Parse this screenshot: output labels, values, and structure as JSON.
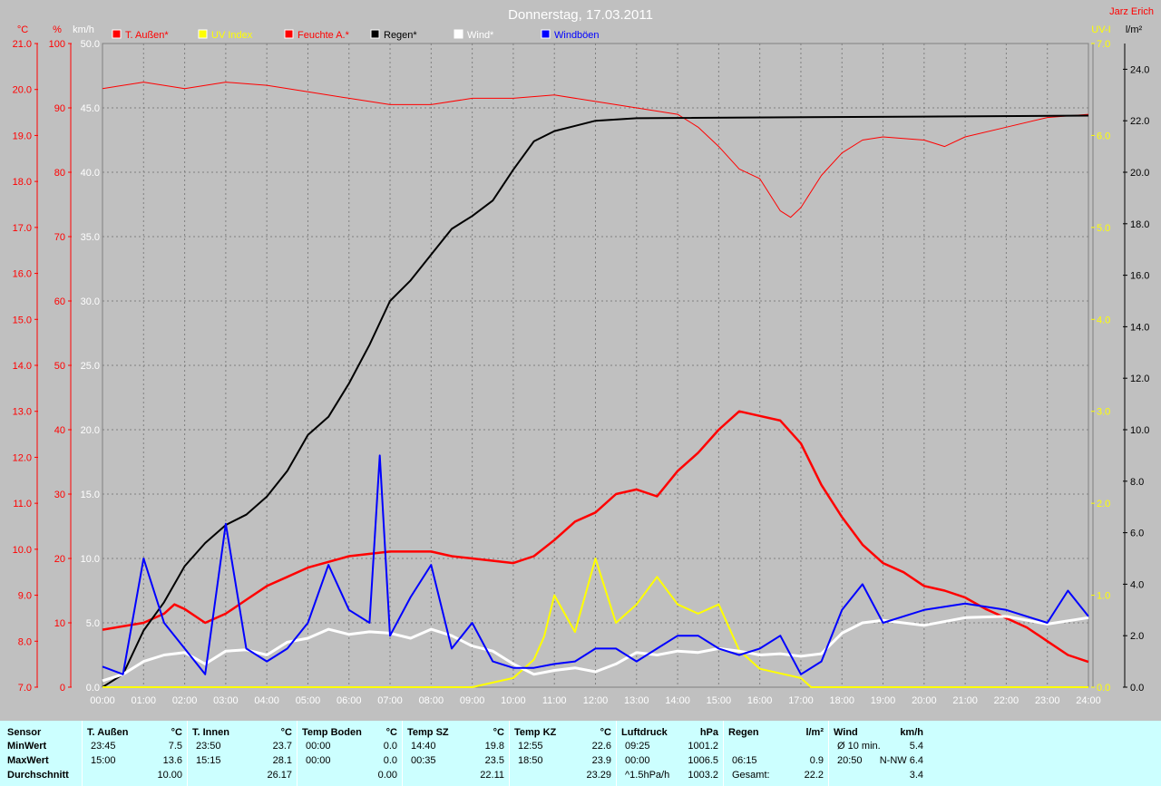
{
  "title": "Donnerstag, 17.03.2011",
  "author": "Jarz Erich",
  "axis_labels": {
    "temp_unit": "°C",
    "pct_unit": "%",
    "kmh_unit": "km/h",
    "uv_unit": "UV-I",
    "rain_unit": "l/m²"
  },
  "ticks": {
    "temp": [
      "7.0",
      "8.0",
      "9.0",
      "10.0",
      "11.0",
      "12.0",
      "13.0",
      "14.0",
      "15.0",
      "16.0",
      "17.0",
      "18.0",
      "19.0",
      "20.0",
      "21.0"
    ],
    "pct": [
      "0",
      "10",
      "20",
      "30",
      "40",
      "50",
      "60",
      "70",
      "80",
      "90",
      "100"
    ],
    "kmh": [
      "0.0",
      "5.0",
      "10.0",
      "15.0",
      "20.0",
      "25.0",
      "30.0",
      "35.0",
      "40.0",
      "45.0",
      "50.0"
    ],
    "uv": [
      "0.0",
      "1.0",
      "2.0",
      "3.0",
      "4.0",
      "5.0",
      "6.0",
      "7.0"
    ],
    "rain": [
      "0.0",
      "2.0",
      "4.0",
      "6.0",
      "8.0",
      "10.0",
      "12.0",
      "14.0",
      "16.0",
      "18.0",
      "20.0",
      "22.0",
      "24.0"
    ],
    "time": [
      "00:00",
      "01:00",
      "02:00",
      "03:00",
      "04:00",
      "05:00",
      "06:00",
      "07:00",
      "08:00",
      "09:00",
      "10:00",
      "11:00",
      "12:00",
      "13:00",
      "14:00",
      "15:00",
      "16:00",
      "17:00",
      "18:00",
      "19:00",
      "20:00",
      "21:00",
      "22:00",
      "23:00",
      "24:00"
    ]
  },
  "colors": {
    "temp": "#ff0000",
    "uv": "#ffff00",
    "humidity": "#ff0000",
    "rain": "#000000",
    "wind": "#ffffff",
    "gust": "#0000ff",
    "plot_bg": "#c0c0c0",
    "table_bg": "#ccffff"
  },
  "chart_data": {
    "type": "line",
    "title": "Donnerstag, 17.03.2011",
    "x_unit": "hour",
    "xlim": [
      0,
      24
    ],
    "legend_position": "top",
    "legend": [
      {
        "label": "T. Außen*",
        "color": "#ff0000"
      },
      {
        "label": "UV Index",
        "color": "#ffff00"
      },
      {
        "label": "Feuchte A.*",
        "color": "#ff0000"
      },
      {
        "label": "Regen*",
        "color": "#000000"
      },
      {
        "label": "Wind*",
        "color": "#ffffff"
      },
      {
        "label": "Windböen",
        "color": "#0000ff"
      }
    ],
    "series": [
      {
        "name": "T. Außen*",
        "axis": "temp",
        "ylim": [
          7,
          21
        ],
        "points": [
          [
            0,
            8.25
          ],
          [
            1,
            8.4
          ],
          [
            1.5,
            8.6
          ],
          [
            1.75,
            8.8
          ],
          [
            2,
            8.7
          ],
          [
            2.5,
            8.4
          ],
          [
            3,
            8.6
          ],
          [
            3.5,
            8.9
          ],
          [
            4,
            9.2
          ],
          [
            4.5,
            9.4
          ],
          [
            5,
            9.6
          ],
          [
            6,
            9.85
          ],
          [
            7,
            9.95
          ],
          [
            8,
            9.95
          ],
          [
            8.5,
            9.85
          ],
          [
            9,
            9.8
          ],
          [
            10,
            9.7
          ],
          [
            10.5,
            9.85
          ],
          [
            11,
            10.2
          ],
          [
            11.5,
            10.6
          ],
          [
            12,
            10.8
          ],
          [
            12.5,
            11.2
          ],
          [
            13,
            11.3
          ],
          [
            13.5,
            11.15
          ],
          [
            14,
            11.7
          ],
          [
            14.5,
            12.1
          ],
          [
            15,
            12.6
          ],
          [
            15.5,
            13.0
          ],
          [
            16,
            12.9
          ],
          [
            16.5,
            12.8
          ],
          [
            17,
            12.3
          ],
          [
            17.5,
            11.4
          ],
          [
            18,
            10.7
          ],
          [
            18.5,
            10.1
          ],
          [
            19,
            9.7
          ],
          [
            19.5,
            9.5
          ],
          [
            20,
            9.2
          ],
          [
            20.5,
            9.1
          ],
          [
            21,
            8.95
          ],
          [
            21.5,
            8.7
          ],
          [
            22,
            8.5
          ],
          [
            22.5,
            8.3
          ],
          [
            23,
            8.0
          ],
          [
            23.5,
            7.7
          ],
          [
            24,
            7.55
          ]
        ]
      },
      {
        "name": "Feuchte A.*",
        "axis": "pct",
        "ylim": [
          0,
          100
        ],
        "points": [
          [
            0,
            93
          ],
          [
            1,
            94
          ],
          [
            2,
            93
          ],
          [
            3,
            94
          ],
          [
            4,
            93.5
          ],
          [
            5,
            92.5
          ],
          [
            6,
            91.5
          ],
          [
            7,
            90.5
          ],
          [
            8,
            90.5
          ],
          [
            9,
            91.5
          ],
          [
            10,
            91.5
          ],
          [
            11,
            92
          ],
          [
            12,
            91
          ],
          [
            13,
            90
          ],
          [
            14,
            89
          ],
          [
            14.5,
            87
          ],
          [
            15,
            84
          ],
          [
            15.5,
            80.5
          ],
          [
            16,
            79
          ],
          [
            16.5,
            74
          ],
          [
            16.75,
            73
          ],
          [
            17,
            74.5
          ],
          [
            17.5,
            79.5
          ],
          [
            18,
            83
          ],
          [
            18.5,
            85
          ],
          [
            19,
            85.5
          ],
          [
            20,
            85
          ],
          [
            20.5,
            84
          ],
          [
            21,
            85.5
          ],
          [
            22,
            87
          ],
          [
            23,
            88.5
          ],
          [
            24,
            89
          ]
        ]
      },
      {
        "name": "Regen*",
        "axis": "rain",
        "ylim": [
          0,
          25
        ],
        "points": [
          [
            0,
            0
          ],
          [
            0.5,
            0.5
          ],
          [
            1,
            2.2
          ],
          [
            1.5,
            3.3
          ],
          [
            2,
            4.7
          ],
          [
            2.5,
            5.6
          ],
          [
            3,
            6.3
          ],
          [
            3.5,
            6.7
          ],
          [
            4,
            7.4
          ],
          [
            4.5,
            8.4
          ],
          [
            5,
            9.8
          ],
          [
            5.5,
            10.5
          ],
          [
            6,
            11.8
          ],
          [
            6.5,
            13.3
          ],
          [
            7,
            15.0
          ],
          [
            7.5,
            15.8
          ],
          [
            8,
            16.8
          ],
          [
            8.5,
            17.8
          ],
          [
            9,
            18.3
          ],
          [
            9.5,
            18.9
          ],
          [
            10,
            20.1
          ],
          [
            10.5,
            21.2
          ],
          [
            11,
            21.6
          ],
          [
            12,
            22.0
          ],
          [
            13,
            22.1
          ],
          [
            24,
            22.2
          ]
        ]
      },
      {
        "name": "UV Index",
        "axis": "uv",
        "ylim": [
          0,
          7
        ],
        "points": [
          [
            0,
            0
          ],
          [
            9,
            0
          ],
          [
            9.5,
            0.05
          ],
          [
            10,
            0.1
          ],
          [
            10.5,
            0.3
          ],
          [
            10.75,
            0.55
          ],
          [
            11,
            1.0
          ],
          [
            11.5,
            0.6
          ],
          [
            12,
            1.4
          ],
          [
            12.5,
            0.7
          ],
          [
            13,
            0.9
          ],
          [
            13.5,
            1.2
          ],
          [
            14,
            0.9
          ],
          [
            14.5,
            0.8
          ],
          [
            15,
            0.9
          ],
          [
            15.5,
            0.4
          ],
          [
            16,
            0.2
          ],
          [
            16.5,
            0.15
          ],
          [
            17,
            0.1
          ],
          [
            17.25,
            0
          ],
          [
            24,
            0
          ]
        ]
      },
      {
        "name": "Wind*",
        "axis": "kmh",
        "ylim": [
          0,
          50
        ],
        "points": [
          [
            0,
            0.5
          ],
          [
            0.5,
            1
          ],
          [
            1,
            2
          ],
          [
            1.5,
            2.5
          ],
          [
            2,
            2.7
          ],
          [
            2.5,
            1.8
          ],
          [
            3,
            2.8
          ],
          [
            3.5,
            2.9
          ],
          [
            4,
            2.5
          ],
          [
            4.5,
            3.5
          ],
          [
            5,
            3.8
          ],
          [
            5.5,
            4.5
          ],
          [
            6,
            4.1
          ],
          [
            6.5,
            4.3
          ],
          [
            7,
            4.2
          ],
          [
            7.5,
            3.8
          ],
          [
            8,
            4.5
          ],
          [
            8.5,
            4.0
          ],
          [
            9,
            3.2
          ],
          [
            9.5,
            2.8
          ],
          [
            10,
            1.8
          ],
          [
            10.5,
            1.0
          ],
          [
            11,
            1.3
          ],
          [
            11.5,
            1.5
          ],
          [
            12,
            1.2
          ],
          [
            12.5,
            1.8
          ],
          [
            13,
            2.7
          ],
          [
            13.5,
            2.5
          ],
          [
            14,
            2.8
          ],
          [
            14.5,
            2.7
          ],
          [
            15,
            3.0
          ],
          [
            15.5,
            2.8
          ],
          [
            16,
            2.5
          ],
          [
            16.5,
            2.6
          ],
          [
            17,
            2.4
          ],
          [
            17.5,
            2.6
          ],
          [
            18,
            4.2
          ],
          [
            18.5,
            5.0
          ],
          [
            19,
            5.2
          ],
          [
            20,
            4.8
          ],
          [
            21,
            5.4
          ],
          [
            22,
            5.5
          ],
          [
            23,
            4.9
          ],
          [
            24,
            5.4
          ]
        ]
      },
      {
        "name": "Windböen",
        "axis": "kmh",
        "ylim": [
          0,
          50
        ],
        "points": [
          [
            0,
            1.6
          ],
          [
            0.5,
            1.0
          ],
          [
            1,
            10
          ],
          [
            1.5,
            5
          ],
          [
            2,
            3
          ],
          [
            2.5,
            1.0
          ],
          [
            3,
            12.7
          ],
          [
            3.5,
            3
          ],
          [
            4,
            2
          ],
          [
            4.5,
            3
          ],
          [
            5,
            5
          ],
          [
            5.5,
            9.5
          ],
          [
            6,
            6
          ],
          [
            6.5,
            5
          ],
          [
            6.75,
            18
          ],
          [
            7,
            4
          ],
          [
            7.5,
            7
          ],
          [
            8,
            9.5
          ],
          [
            8.5,
            3
          ],
          [
            9,
            5
          ],
          [
            9.5,
            2
          ],
          [
            10,
            1.5
          ],
          [
            10.5,
            1.5
          ],
          [
            11,
            1.8
          ],
          [
            11.5,
            2
          ],
          [
            12,
            3
          ],
          [
            12.5,
            3
          ],
          [
            13,
            2
          ],
          [
            13.5,
            3
          ],
          [
            14,
            4
          ],
          [
            14.5,
            4
          ],
          [
            15,
            3
          ],
          [
            15.5,
            2.5
          ],
          [
            16,
            3
          ],
          [
            16.5,
            4
          ],
          [
            17,
            1
          ],
          [
            17.5,
            2
          ],
          [
            18,
            6
          ],
          [
            18.5,
            8
          ],
          [
            19,
            5
          ],
          [
            20,
            6
          ],
          [
            21,
            6.5
          ],
          [
            22,
            6
          ],
          [
            23,
            5
          ],
          [
            23.5,
            7.5
          ],
          [
            24,
            5.5
          ]
        ]
      }
    ]
  },
  "table": {
    "row_labels": [
      "Sensor",
      "MinWert",
      "MaxWert",
      "Durchschnitt"
    ],
    "columns": [
      {
        "title": "T. Außen",
        "unit": "°C",
        "rows": [
          [
            "23:45",
            "7.5"
          ],
          [
            "15:00",
            "13.6"
          ],
          [
            "",
            "10.00"
          ]
        ]
      },
      {
        "title": "T. Innen",
        "unit": "°C",
        "rows": [
          [
            "23:50",
            "23.7"
          ],
          [
            "15:15",
            "28.1"
          ],
          [
            "",
            "26.17"
          ]
        ]
      },
      {
        "title": "Temp Boden",
        "unit": "°C",
        "rows": [
          [
            "00:00",
            "0.0"
          ],
          [
            "00:00",
            "0.0"
          ],
          [
            "",
            "0.00"
          ]
        ]
      },
      {
        "title": "Temp SZ",
        "unit": "°C",
        "rows": [
          [
            "14:40",
            "19.8"
          ],
          [
            "00:35",
            "23.5"
          ],
          [
            "",
            "22.11"
          ]
        ]
      },
      {
        "title": "Temp KZ",
        "unit": "°C",
        "rows": [
          [
            "12:55",
            "22.6"
          ],
          [
            "18:50",
            "23.9"
          ],
          [
            "",
            "23.29"
          ]
        ]
      },
      {
        "title": "Luftdruck",
        "unit": "hPa",
        "rows": [
          [
            "09:25",
            "1001.2"
          ],
          [
            "00:00",
            "1006.5"
          ],
          [
            "^1.5hPa/h",
            "1003.2"
          ]
        ]
      },
      {
        "title": "Regen",
        "unit": "l/m²",
        "rows": [
          [
            "",
            ""
          ],
          [
            "06:15",
            "0.9"
          ],
          [
            "Gesamt:",
            "22.2"
          ]
        ]
      },
      {
        "title": "Wind",
        "unit": "km/h",
        "rows": [
          [
            "Ø 10 min.",
            "5.4"
          ],
          [
            "20:50",
            "N-NW 6.4"
          ],
          [
            "",
            "3.4"
          ]
        ]
      }
    ]
  }
}
